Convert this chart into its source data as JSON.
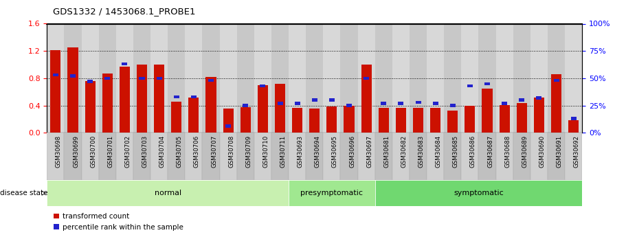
{
  "title": "GDS1332 / 1453068.1_PROBE1",
  "samples": [
    "GSM30698",
    "GSM30699",
    "GSM30700",
    "GSM30701",
    "GSM30702",
    "GSM30703",
    "GSM30704",
    "GSM30705",
    "GSM30706",
    "GSM30707",
    "GSM30708",
    "GSM30709",
    "GSM30710",
    "GSM30711",
    "GSM30693",
    "GSM30694",
    "GSM30695",
    "GSM30696",
    "GSM30697",
    "GSM30681",
    "GSM30682",
    "GSM30683",
    "GSM30684",
    "GSM30685",
    "GSM30686",
    "GSM30687",
    "GSM30688",
    "GSM30689",
    "GSM30690",
    "GSM30691",
    "GSM30692"
  ],
  "transformed_count": [
    1.21,
    1.25,
    0.76,
    0.87,
    0.97,
    1.0,
    1.0,
    0.46,
    0.52,
    0.82,
    0.35,
    0.38,
    0.7,
    0.72,
    0.36,
    0.35,
    0.39,
    0.4,
    1.0,
    0.36,
    0.36,
    0.37,
    0.36,
    0.32,
    0.4,
    0.65,
    0.41,
    0.44,
    0.52,
    0.86,
    0.18
  ],
  "percentile_rank": [
    53,
    52,
    47,
    50,
    63,
    50,
    50,
    33,
    33,
    48,
    6,
    25,
    43,
    27,
    27,
    30,
    30,
    25,
    50,
    27,
    27,
    28,
    27,
    25,
    43,
    45,
    27,
    30,
    32,
    48,
    13
  ],
  "groups": [
    {
      "label": "normal",
      "start": 0,
      "end": 14,
      "color": "#c8f0b0"
    },
    {
      "label": "presymptomatic",
      "start": 14,
      "end": 19,
      "color": "#a0e890"
    },
    {
      "label": "symptomatic",
      "start": 19,
      "end": 31,
      "color": "#70d870"
    }
  ],
  "bar_color": "#cc1100",
  "percentile_color": "#2222cc",
  "ylim_left": [
    0,
    1.6
  ],
  "ylim_right": [
    0,
    100
  ],
  "yticks_left": [
    0,
    0.4,
    0.8,
    1.2,
    1.6
  ],
  "yticks_right": [
    0,
    25,
    50,
    75,
    100
  ],
  "plot_bg": "#f0f0f0",
  "disease_state_label": "disease state"
}
